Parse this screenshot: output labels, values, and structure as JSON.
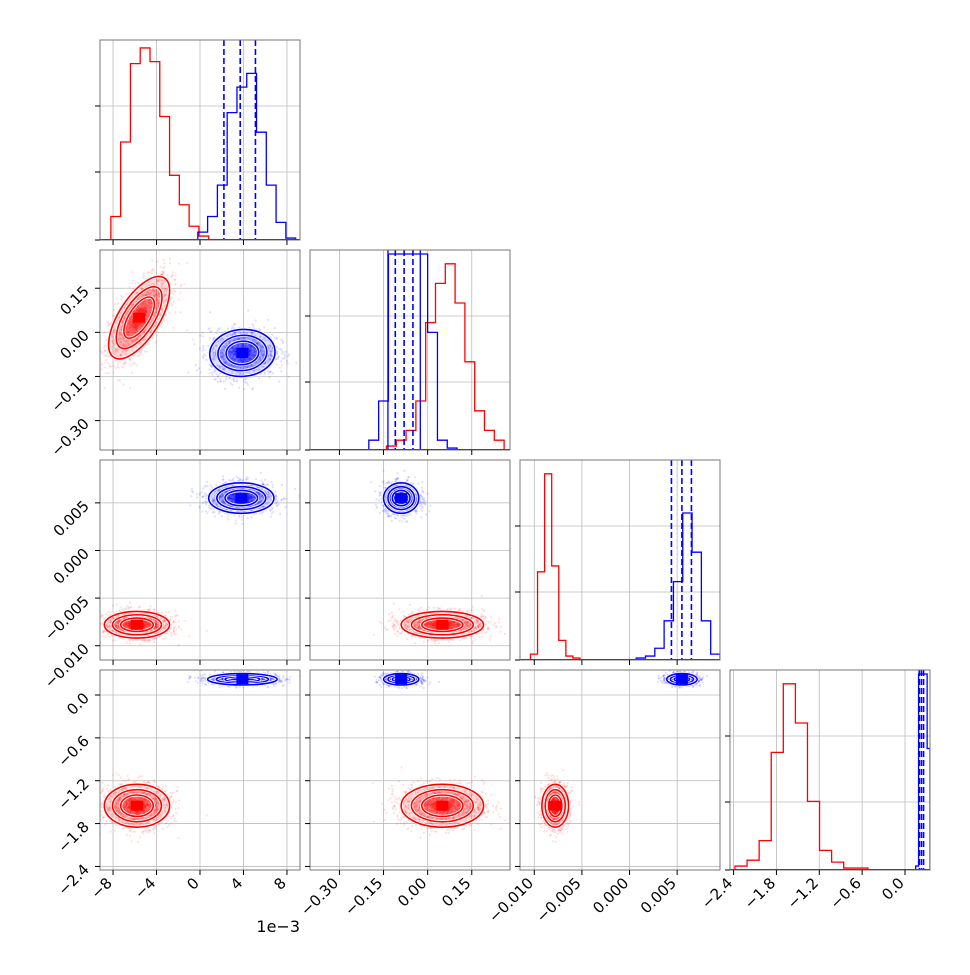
{
  "chart_data": {
    "type": "corner",
    "offset_label": "1e−3",
    "grid": true,
    "series": [
      {
        "name": "",
        "color": "#ff0000"
      },
      {
        "name": "",
        "color": "#0000ff"
      }
    ],
    "params": [
      {
        "range": [
          -9.2,
          9.2
        ],
        "ticks": [
          -8,
          -4,
          0,
          4,
          8
        ],
        "tick_labels": [
          "−8",
          "−4",
          "0",
          "4",
          "8"
        ]
      },
      {
        "range": [
          -0.4,
          0.28
        ],
        "ticks": [
          -0.3,
          -0.15,
          0.0,
          0.15
        ],
        "tick_labels": [
          "−0.30",
          "−0.15",
          "0.00",
          "0.15"
        ]
      },
      {
        "range": [
          -0.0115,
          0.0095
        ],
        "ticks": [
          -0.01,
          -0.005,
          0.0,
          0.005
        ],
        "tick_labels": [
          "−0.010",
          "−0.005",
          "0.000",
          "0.005"
        ]
      },
      {
        "range": [
          -2.45,
          0.35
        ],
        "ticks": [
          -2.4,
          -1.8,
          -1.2,
          -0.6,
          0.0
        ],
        "tick_labels": [
          "−2.4",
          "−1.8",
          "−1.2",
          "−0.6",
          "0.0"
        ]
      }
    ],
    "diag": [
      {
        "red": {
          "edges": [
            -8.2,
            0.8
          ],
          "counts": [
            0.12,
            0.5,
            0.9,
            0.98,
            0.91,
            0.63,
            0.33,
            0.18,
            0.07,
            0.02
          ]
        },
        "blue": {
          "edges": [
            -0.2,
            8.8
          ],
          "counts": [
            0.04,
            0.12,
            0.28,
            0.65,
            0.78,
            0.85,
            0.55,
            0.28,
            0.09,
            0.01
          ]
        },
        "blue_quantiles": [
          2.2,
          3.7,
          5.1
        ]
      },
      {
        "red": {
          "edges": [
            -0.14,
            0.26
          ],
          "counts": [
            0.02,
            0.05,
            0.1,
            0.25,
            0.65,
            0.85,
            0.95,
            0.75,
            0.45,
            0.2,
            0.1,
            0.05
          ]
        },
        "blue": {
          "edges": [
            -0.2,
            0.1
          ],
          "counts": [
            0.05,
            0.25,
            1.0,
            1.0,
            1.0,
            1.0,
            0.6,
            0.05,
            0.01
          ]
        },
        "blue_quantiles": [
          -0.11,
          -0.08,
          -0.05
        ],
        "blue_edge_lines": [
          -0.135,
          -0.025
        ]
      },
      {
        "red": {
          "edges": [
            -0.0104,
            -0.0052
          ],
          "counts": [
            0.03,
            0.45,
            0.95,
            0.48,
            0.1,
            0.02,
            0.01
          ]
        },
        "blue": {
          "edges": [
            0.0007,
            0.0095
          ],
          "counts": [
            0.01,
            0.02,
            0.06,
            0.2,
            0.4,
            0.75,
            0.55,
            0.2,
            0.03
          ]
        },
        "blue_quantiles": [
          0.0044,
          0.0055,
          0.0065
        ]
      },
      {
        "red": {
          "edges": [
            -2.38,
            -0.52
          ],
          "counts": [
            0.02,
            0.05,
            0.15,
            0.6,
            0.95,
            0.75,
            0.35,
            0.1,
            0.04,
            0.01,
            0.01
          ]
        },
        "blue": {
          "edges": [
            0.15,
            0.35
          ],
          "counts": [
            0.02,
            1.0,
            1.0,
            1.0,
            0.62
          ]
        },
        "blue_quantiles": [
          0.2,
          0.23,
          0.26
        ]
      }
    ],
    "pairs": [
      {
        "row": 1,
        "col": 0,
        "red": {
          "mean": [
            -5.6,
            0.05
          ],
          "sd": [
            1.4,
            0.07
          ],
          "rho": 0.65
        },
        "blue": {
          "mean": [
            3.9,
            -0.07
          ],
          "sd": [
            1.5,
            0.04
          ],
          "rho": 0.05
        }
      },
      {
        "row": 2,
        "col": 0,
        "red": {
          "mean": [
            -5.8,
            -0.0078
          ],
          "sd": [
            1.5,
            0.0007
          ],
          "rho": 0.0
        },
        "blue": {
          "mean": [
            3.8,
            0.0055
          ],
          "sd": [
            1.5,
            0.0008
          ],
          "rho": 0.0
        }
      },
      {
        "row": 2,
        "col": 1,
        "red": {
          "mean": [
            0.05,
            -0.0078
          ],
          "sd": [
            0.07,
            0.0007
          ],
          "rho": 0.0
        },
        "blue": {
          "mean": [
            -0.09,
            0.0055
          ],
          "sd": [
            0.03,
            0.0008
          ],
          "rho": 0.0
        }
      },
      {
        "row": 3,
        "col": 0,
        "red": {
          "mean": [
            -5.8,
            -1.55
          ],
          "sd": [
            1.5,
            0.15
          ],
          "rho": 0.0
        },
        "blue": {
          "mean": [
            3.9,
            0.22
          ],
          "sd": [
            1.6,
            0.04
          ],
          "rho": 0.0
        }
      },
      {
        "row": 3,
        "col": 1,
        "red": {
          "mean": [
            0.05,
            -1.55
          ],
          "sd": [
            0.07,
            0.15
          ],
          "rho": 0.0
        },
        "blue": {
          "mean": [
            -0.09,
            0.22
          ],
          "sd": [
            0.03,
            0.04
          ],
          "rho": 0.0
        }
      },
      {
        "row": 3,
        "col": 2,
        "red": {
          "mean": [
            -0.0078,
            -1.55
          ],
          "sd": [
            0.0007,
            0.15
          ],
          "rho": 0.0
        },
        "blue": {
          "mean": [
            0.0055,
            0.22
          ],
          "sd": [
            0.0008,
            0.04
          ],
          "rho": 0.0
        }
      }
    ]
  }
}
